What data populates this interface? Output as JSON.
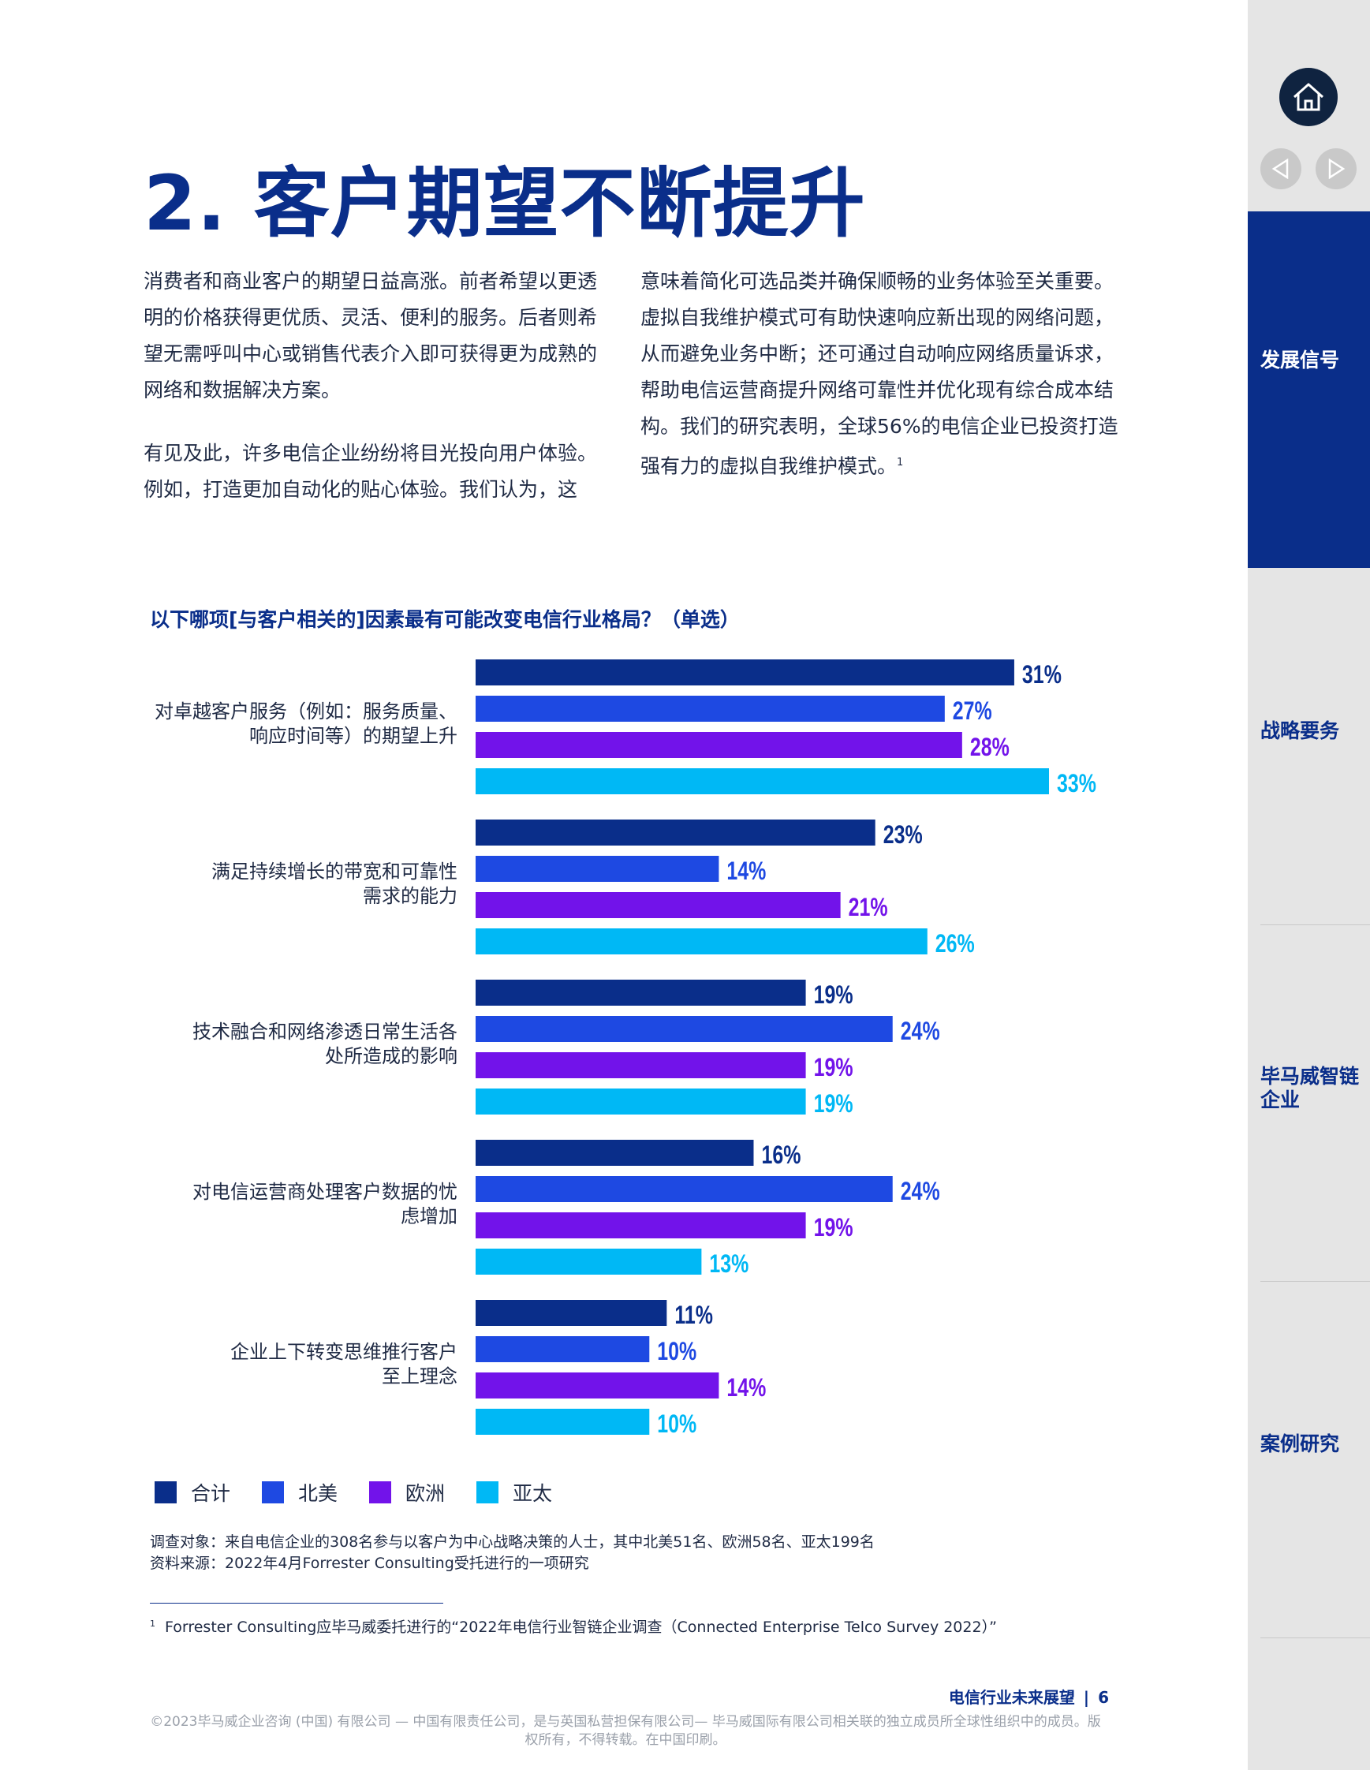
{
  "title": "2. 客户期望不断提升",
  "body": {
    "left_p1": "消费者和商业客户的期望日益高涨。前者希望以更透明的价格获得更优质、灵活、便利的服务。后者则希望无需呼叫中心或销售代表介入即可获得更为成熟的网络和数据解决方案。",
    "left_p2": "有见及此，许多电信企业纷纷将目光投向用户体验。例如，打造更加自动化的贴心体验。我们认为，这",
    "right_p1": "意味着简化可选品类并确保顺畅的业务体验至关重要。虚拟自我维护模式可有助快速响应新出现的网络问题，从而避免业务中断；还可通过自动响应网络质量诉求，帮助电信运营商提升网络可靠性并优化现有综合成本结构。我们的研究表明，全球56%的电信企业已投资打造强有力的虚拟自我维护模式。",
    "right_p1_ref": "1"
  },
  "chart_data": {
    "type": "bar",
    "orientation": "horizontal",
    "title": "以下哪项[与客户相关的]因素最有可能改变电信行业格局？（单选）",
    "categories": [
      [
        "对卓越客户服务（例如：服务质量、",
        "响应时间等）的期望上升"
      ],
      [
        "满足持续增长的带宽和可靠性",
        "需求的能力"
      ],
      [
        "技术融合和网络渗透日常生活各",
        "处所造成的影响"
      ],
      [
        "对电信运营商处理客户数据的忧",
        "虑增加"
      ],
      [
        "企业上下转变思维推行客户",
        "至上理念"
      ]
    ],
    "series": [
      {
        "name": "合计",
        "color": "#0a2e8a",
        "values": [
          31,
          23,
          19,
          16,
          11
        ]
      },
      {
        "name": "北美",
        "color": "#1e49e2",
        "values": [
          27,
          14,
          24,
          24,
          10
        ]
      },
      {
        "name": "欧洲",
        "color": "#7213ea",
        "values": [
          28,
          21,
          19,
          19,
          14
        ]
      },
      {
        "name": "亚太",
        "color": "#00b8f5",
        "values": [
          33,
          26,
          19,
          13,
          10
        ]
      }
    ],
    "unit": "%",
    "xlim": [
      0,
      33
    ],
    "legend_position": "bottom-left"
  },
  "notes": {
    "survey": "调查对象：来自电信企业的308名参与以客户为中心战略决策的人士，其中北美51名、欧洲58名、亚太199名",
    "source": "资料来源：2022年4月Forrester Consulting受托进行的一项研究"
  },
  "footnote": {
    "mark": "1",
    "text": "Forrester Consulting应毕马威委托进行的“2022年电信行业智链企业调查（Connected Enterprise Telco Survey 2022）”"
  },
  "footer": {
    "page_label": "电信行业未来展望",
    "page_number": "6",
    "separator": "|",
    "copyright": "©2023毕马威企业咨询 (中国) 有限公司 — 中国有限责任公司，是与英国私营担保有限公司— 毕马威国际有限公司相关联的独立成员所全球性组织中的成员。版权所有，不得转载。在中国印刷。"
  },
  "sidebar": {
    "home_icon": "home-icon",
    "prev_icon": "triangle-left-icon",
    "next_icon": "triangle-right-icon",
    "sections": [
      {
        "label": "发展信号",
        "active": true
      },
      {
        "label": "战略要务",
        "active": false
      },
      {
        "label": "毕马威智链企业",
        "active": false
      },
      {
        "label": "案例研究",
        "active": false
      }
    ],
    "active_color": "#0a2e8a"
  }
}
